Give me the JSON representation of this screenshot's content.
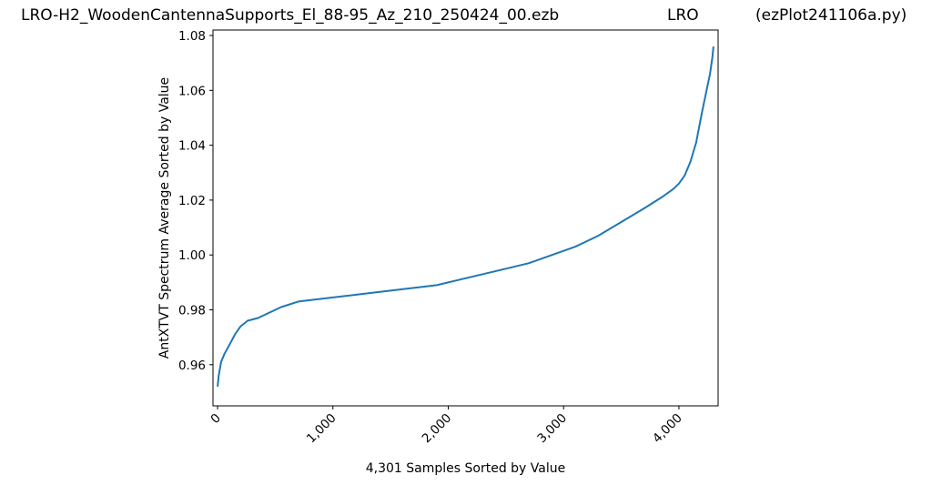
{
  "header": {
    "title_left": "LRO-H2_WoodenCantennaSupports_El_88-95_Az_210_250424_00.ezb",
    "title_mid": "LRO",
    "title_right": "(ezPlot241106a.py)"
  },
  "chart_data": {
    "type": "line",
    "xlabel": "4,301 Samples Sorted by Value",
    "ylabel": "AntXTVT Spectrum Average Sorted by Value",
    "xlim": [
      -40,
      4340
    ],
    "ylim": [
      0.945,
      1.082
    ],
    "x_ticks": [
      0,
      1000,
      2000,
      3000,
      4000
    ],
    "x_tick_labels": [
      "0",
      "1,000",
      "2,000",
      "3,000",
      "4,000"
    ],
    "y_ticks": [
      0.96,
      0.98,
      1.0,
      1.02,
      1.04,
      1.06,
      1.08
    ],
    "y_tick_labels": [
      "0.96",
      "0.98",
      "1.00",
      "1.02",
      "1.04",
      "1.06",
      "1.08"
    ],
    "grid": false,
    "series": [
      {
        "color": "#1f77b4",
        "x": [
          0,
          10,
          30,
          60,
          100,
          150,
          200,
          260,
          350,
          450,
          550,
          700,
          900,
          1100,
          1300,
          1500,
          1700,
          1900,
          2100,
          2300,
          2500,
          2700,
          2900,
          3100,
          3300,
          3500,
          3700,
          3850,
          3950,
          4000,
          4050,
          4100,
          4150,
          4200,
          4240,
          4270,
          4290,
          4300
        ],
        "y": [
          0.952,
          0.956,
          0.961,
          0.964,
          0.967,
          0.971,
          0.974,
          0.976,
          0.977,
          0.979,
          0.981,
          0.983,
          0.984,
          0.985,
          0.986,
          0.987,
          0.988,
          0.989,
          0.991,
          0.993,
          0.995,
          0.997,
          1.0,
          1.003,
          1.007,
          1.012,
          1.017,
          1.021,
          1.024,
          1.026,
          1.029,
          1.034,
          1.041,
          1.052,
          1.06,
          1.066,
          1.072,
          1.076
        ]
      }
    ]
  }
}
